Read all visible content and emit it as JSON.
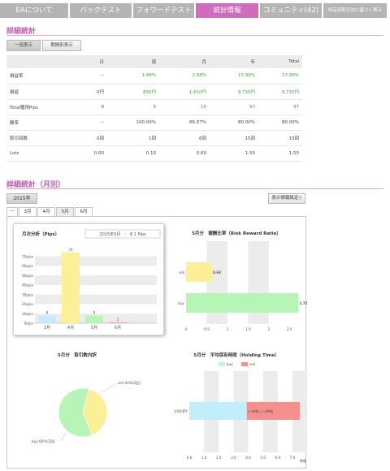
{
  "nav": {
    "tabs": [
      {
        "label": "EAについて",
        "active": false
      },
      {
        "label": "バックテスト",
        "active": false
      },
      {
        "label": "フォワードテスト",
        "active": false
      },
      {
        "label": "統計情報",
        "active": true
      },
      {
        "label": "コミュニティ(42)",
        "active": false
      },
      {
        "label": "特定商取引法に基づく表示",
        "active": false
      }
    ]
  },
  "detail": {
    "title": "詳細統計",
    "toggle": [
      "一括表示",
      "期間別表示"
    ],
    "columns": [
      "",
      "日",
      "週",
      "月",
      "年",
      "Total"
    ],
    "rows": [
      {
        "label": "損益率",
        "values": [
          "--",
          "1.48%",
          "2.98%",
          "17.99%",
          "17.99%"
        ],
        "green": [
          false,
          true,
          true,
          true,
          true
        ]
      },
      {
        "label": "損益",
        "values": [
          "0円",
          "800円",
          "1,610円",
          "9,730円",
          "9,730円"
        ],
        "green": [
          false,
          true,
          true,
          true,
          true
        ]
      },
      {
        "label": "Total獲得Pips",
        "values": [
          "0",
          "8",
          "16",
          "97",
          "97"
        ],
        "green": [
          false,
          true,
          true,
          true,
          true
        ]
      },
      {
        "label": "勝率",
        "values": [
          "--",
          "100.00%",
          "66.67%",
          "80.00%",
          "80.00%"
        ],
        "green": [
          false,
          false,
          false,
          false,
          false
        ]
      },
      {
        "label": "取引回数",
        "values": [
          "0回",
          "1回",
          "6回",
          "15回",
          "15回"
        ],
        "green": [
          false,
          false,
          false,
          false,
          false
        ]
      },
      {
        "label": "Lots",
        "values": [
          "0.00",
          "0.10",
          "0.60",
          "1.50",
          "1.50"
        ],
        "green": [
          false,
          false,
          false,
          false,
          false
        ]
      }
    ]
  },
  "monthly": {
    "title": "詳細統計（月別）",
    "year": "2015年",
    "settings_button": "表示情報設定▽",
    "tabs": [
      "－",
      "3月",
      "4月",
      "5月",
      "6月"
    ],
    "active_tab": 3
  },
  "chart_data": [
    {
      "type": "bar",
      "title": "月次分析（Pips）",
      "info": "2015年5月　:　8.1 Pips",
      "categories": [
        "3月",
        "4月",
        "5月",
        "6月"
      ],
      "values": [
        8,
        74,
        8,
        1
      ],
      "ylim": [
        0,
        80
      ],
      "yticks": [
        "0pips",
        "10pips",
        "20pips",
        "30pips",
        "40pips",
        "50pips",
        "60pips",
        "70pips"
      ],
      "colors": [
        "#c9e8fb",
        "#fbef97",
        "#b7f5b7",
        "#f5a3a3"
      ]
    },
    {
      "type": "bar",
      "orientation": "horizontal",
      "title": "5月分　報酬比率（Risk Reward Ratio）",
      "categories": [
        "sell",
        "buy"
      ],
      "values": [
        0.63,
        2.72
      ],
      "xlim": [
        0,
        2.75
      ],
      "xticks": [
        "0",
        "0.5",
        "1",
        "1.5",
        "2",
        "2.5"
      ],
      "colors": [
        "#fbef97",
        "#b7f5b7"
      ]
    },
    {
      "type": "pie",
      "title": "5月分　取引数内訳",
      "labels": [
        "sell 40%(2回)",
        "buy 60%(3回)"
      ],
      "values": [
        40,
        60
      ],
      "colors": [
        "#fbef97",
        "#b7f5b7"
      ]
    },
    {
      "type": "bar",
      "orientation": "horizontal",
      "stacked": true,
      "title": "5月分　平均保有時間（Holding Time）",
      "legend": [
        "buy",
        "sell"
      ],
      "categories": [
        "USD/JPY"
      ],
      "series": [
        {
          "name": "buy",
          "values": [
            3.9
          ]
        },
        {
          "name": "sell",
          "values": [
            3.6
          ]
        }
      ],
      "bar_label": "3.9時間 / 3.6時間",
      "xlim": [
        0,
        7.5
      ],
      "xticks": [
        "0.0",
        "1.0",
        "2.0",
        "3.0",
        "4.0",
        "5.0",
        "6.0",
        "7.0"
      ],
      "xunit": "時間",
      "colors": [
        "#c0eefb",
        "#f78f8f"
      ]
    }
  ]
}
